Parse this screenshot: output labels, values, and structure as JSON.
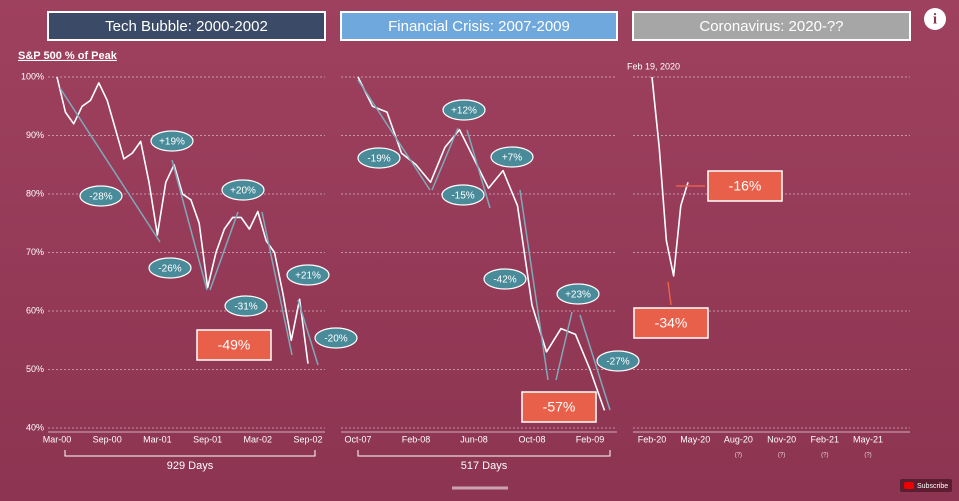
{
  "page": {
    "info_icon": "i",
    "subscribe": "Subscribe"
  },
  "chart_data": [
    {
      "type": "line",
      "title": "Tech Bubble: 2000-2002",
      "title_color": "#3b4a66",
      "y_axis_label": "S&P 500 % of Peak",
      "categories": [
        "Mar-00",
        null,
        null,
        null,
        null,
        null,
        "Sep-00",
        null,
        null,
        null,
        null,
        null,
        "Mar-01",
        null,
        null,
        null,
        null,
        null,
        "Sep-01",
        null,
        null,
        null,
        null,
        null,
        "Mar-02",
        null,
        null,
        null,
        null,
        null,
        "Sep-02"
      ],
      "series": [
        {
          "name": "S&P 500",
          "color": "#ffffff",
          "values": [
            100,
            94,
            92,
            95,
            96,
            99,
            96,
            91,
            86,
            87,
            89,
            82,
            73,
            82,
            85,
            80,
            79,
            75,
            64,
            70,
            74,
            76,
            76,
            74,
            77,
            72,
            70,
            63,
            55,
            62,
            51
          ]
        }
      ],
      "ylim": [
        40,
        100
      ],
      "yticks": [
        {
          "value": 40,
          "label": "40%"
        },
        {
          "value": 50,
          "label": "50%"
        },
        {
          "value": 60,
          "label": "60%"
        },
        {
          "value": 70,
          "label": "70%"
        },
        {
          "value": 80,
          "label": "80%"
        },
        {
          "value": 90,
          "label": "90%"
        },
        {
          "value": 100,
          "label": "100%"
        }
      ],
      "grid": true,
      "span_label": "929 Days",
      "annotations": [
        "-28%",
        "+19%",
        "-26%",
        "+20%",
        "-31%",
        "+21%",
        "-20%",
        "-49%"
      ]
    },
    {
      "type": "line",
      "title": "Financial Crisis: 2007-2009",
      "title_color": "#6fa8dc",
      "categories": [
        "Oct-07",
        null,
        null,
        null,
        "Feb-08",
        null,
        null,
        null,
        "Jun-08",
        null,
        null,
        null,
        "Oct-08",
        null,
        null,
        null,
        "Feb-09",
        null
      ],
      "series": [
        {
          "name": "S&P 500",
          "color": "#ffffff",
          "values": [
            100,
            95,
            94,
            87,
            85,
            82,
            88,
            91,
            86,
            81,
            84,
            78,
            61,
            53,
            57,
            56,
            50,
            43
          ]
        }
      ],
      "ylim": [
        40,
        100
      ],
      "yticks": [
        40,
        50,
        60,
        70,
        80,
        90,
        100
      ],
      "grid": true,
      "span_label": "517 Days",
      "annotations": [
        "-19%",
        "+12%",
        "-15%",
        "+7%",
        "-42%",
        "+23%",
        "-27%",
        "-57%"
      ]
    },
    {
      "type": "line",
      "title": "Coronavirus: 2020-??",
      "title_color": "#a6a6a6",
      "categories": [
        "Feb-20",
        null,
        null,
        null,
        null,
        null,
        "May-20",
        null,
        null,
        null,
        null,
        null,
        "Aug-20",
        null,
        null,
        null,
        null,
        null,
        "Nov-20",
        null,
        null,
        null,
        null,
        null,
        "Feb-21",
        null,
        null,
        null,
        null,
        null,
        "May-21"
      ],
      "series": [
        {
          "name": "S&P 500",
          "color": "#ffffff",
          "values": [
            100,
            88,
            72,
            66,
            78,
            82,
            null,
            null,
            null,
            null,
            null,
            null,
            null,
            null,
            null,
            null,
            null,
            null,
            null,
            null,
            null,
            null,
            null,
            null,
            null,
            null,
            null,
            null,
            null,
            null,
            null
          ]
        }
      ],
      "ylim": [
        40,
        100
      ],
      "yticks": [
        40,
        50,
        60,
        70,
        80,
        90,
        100
      ],
      "grid": true,
      "peak_label": "Feb 19, 2020",
      "future_mark": "(?)",
      "annotations": [
        "-16%",
        "-34%"
      ]
    }
  ]
}
